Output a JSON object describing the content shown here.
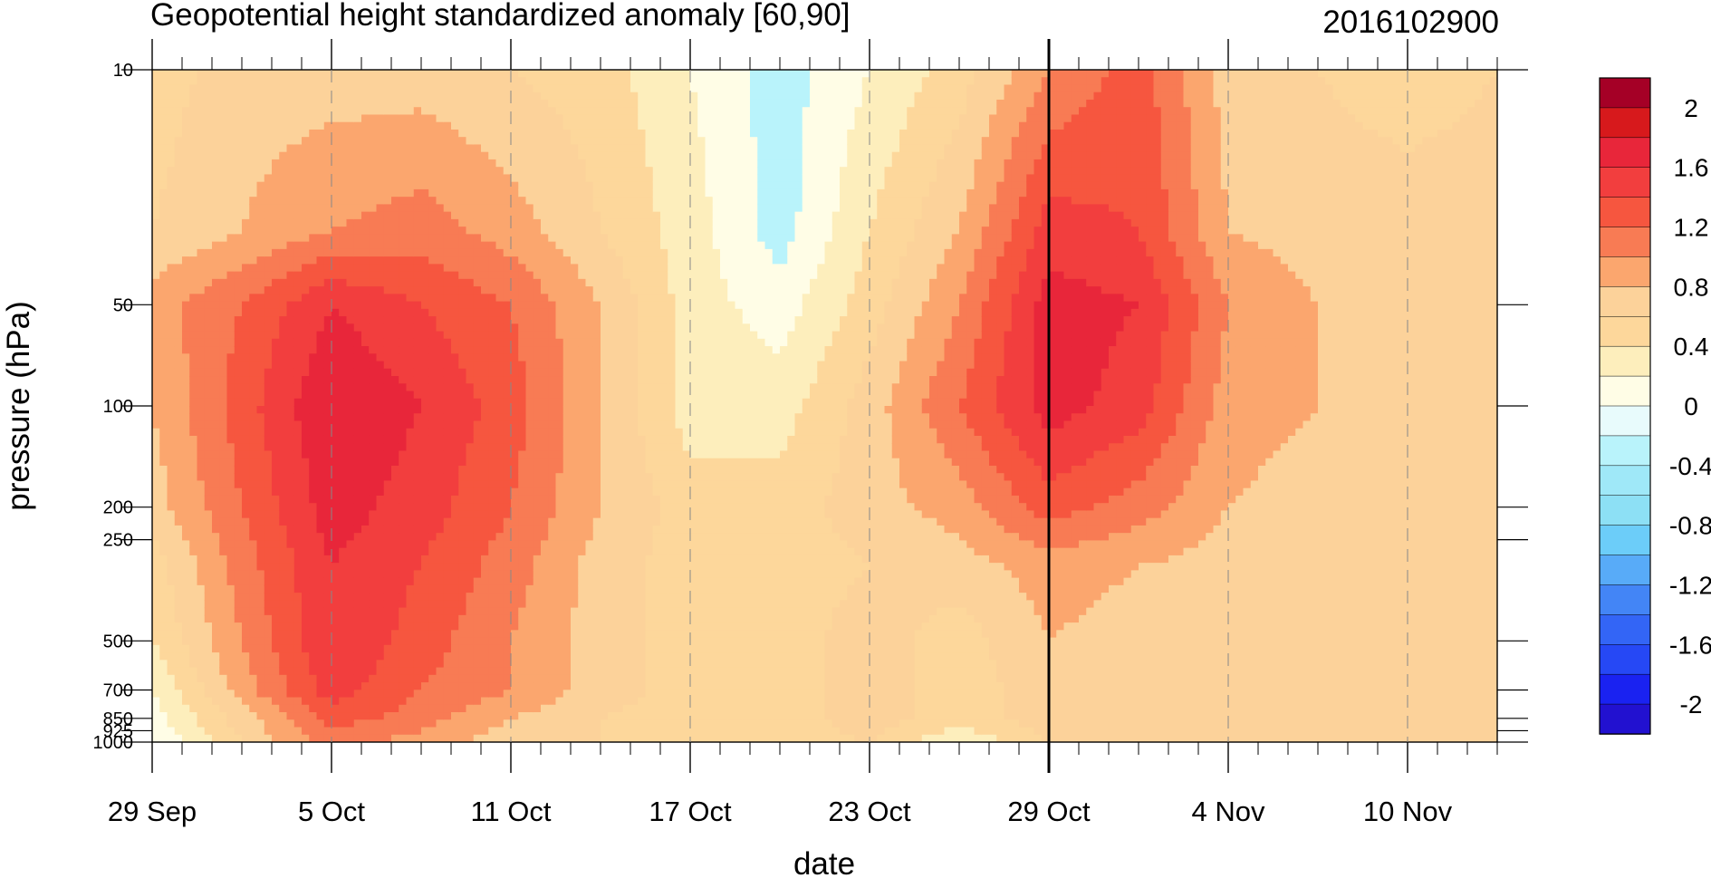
{
  "chart_data": {
    "type": "heatmap",
    "title": "Geopotential height standardized anomaly [60,90]",
    "timestamp": "2016102900",
    "xlabel": "date",
    "ylabel": "pressure (hPa)",
    "x_ticks": [
      "29 Sep",
      "5 Oct",
      "11 Oct",
      "17 Oct",
      "23 Oct",
      "29 Oct",
      "4 Nov",
      "10 Nov"
    ],
    "x_tick_days": [
      0,
      6,
      12,
      18,
      24,
      30,
      36,
      42
    ],
    "x_range_days": [
      0,
      45
    ],
    "current_date_day": 30,
    "y_scale": "log",
    "y_range": [
      10,
      1000
    ],
    "y_ticks": [
      "10",
      "50",
      "100",
      "200",
      "250",
      "500",
      "700",
      "850",
      "925",
      "1000"
    ],
    "y_tick_values": [
      10,
      50,
      100,
      200,
      250,
      500,
      700,
      850,
      925,
      1000
    ],
    "colorbar": {
      "labels": [
        "2",
        "1.6",
        "1.2",
        "0.8",
        "0.4",
        "0",
        "-0.4",
        "-0.8",
        "-1.2",
        "-1.6",
        "-2"
      ],
      "label_values": [
        2,
        1.6,
        1.2,
        0.8,
        0.4,
        0,
        -0.4,
        -0.8,
        -1.2,
        -1.6,
        -2
      ],
      "colors": [
        "#a50026",
        "#d7191c",
        "#e8263a",
        "#f23e3e",
        "#f6563f",
        "#f87b54",
        "#fba66e",
        "#fcd29a",
        "#fdd79b",
        "#fdeebc",
        "#fffde6",
        "#e8fbfc",
        "#b9f3fb",
        "#9fe8f8",
        "#8de0f5",
        "#6ccdf9",
        "#58abf8",
        "#4385f6",
        "#3365f6",
        "#2648f5",
        "#1a22f1",
        "#2211d0"
      ]
    },
    "levels": [
      -0.2,
      0,
      0.2,
      0.4,
      0.6,
      0.8,
      1.0,
      1.2,
      1.4,
      1.6
    ],
    "field": {
      "days": [
        0,
        3,
        6,
        9,
        12,
        15,
        18,
        21,
        24,
        27,
        30,
        33,
        36,
        39,
        42,
        45
      ],
      "p": [
        10,
        30,
        50,
        100,
        200,
        300,
        500,
        700,
        850,
        1000
      ],
      "values": [
        [
          0.3,
          0.5,
          0.5,
          0.5,
          0.4,
          0.3,
          0.0,
          -0.3,
          0.0,
          0.3,
          0.8,
          1.1,
          0.5,
          0.4,
          0.3,
          0.4
        ],
        [
          0.4,
          0.6,
          0.8,
          0.9,
          0.7,
          0.4,
          0.1,
          -0.3,
          0.2,
          0.6,
          1.3,
          1.2,
          0.6,
          0.5,
          0.5,
          0.5
        ],
        [
          0.7,
          1.0,
          1.4,
          1.2,
          1.0,
          0.6,
          0.1,
          -0.1,
          0.3,
          0.8,
          1.5,
          1.4,
          0.8,
          0.6,
          0.5,
          0.6
        ],
        [
          0.6,
          1.1,
          1.6,
          1.4,
          1.1,
          0.6,
          0.1,
          0.1,
          0.5,
          1.0,
          1.5,
          1.3,
          0.7,
          0.6,
          0.5,
          0.5
        ],
        [
          0.5,
          1.0,
          1.5,
          1.3,
          1.0,
          0.6,
          0.3,
          0.3,
          0.5,
          0.7,
          1.1,
          0.9,
          0.6,
          0.5,
          0.5,
          0.5
        ],
        [
          0.3,
          0.9,
          1.4,
          1.2,
          0.9,
          0.5,
          0.3,
          0.3,
          0.4,
          0.5,
          0.7,
          0.6,
          0.5,
          0.5,
          0.5,
          0.5
        ],
        [
          0.2,
          0.8,
          1.4,
          1.1,
          0.8,
          0.5,
          0.3,
          0.3,
          0.5,
          0.3,
          0.6,
          0.5,
          0.5,
          0.5,
          0.5,
          0.5
        ],
        [
          0.0,
          0.7,
          1.3,
          1.0,
          0.8,
          0.5,
          0.3,
          0.3,
          0.5,
          0.3,
          0.5,
          0.5,
          0.6,
          0.5,
          0.5,
          0.5
        ],
        [
          -0.1,
          0.5,
          1.1,
          0.9,
          0.6,
          0.4,
          0.3,
          0.3,
          0.5,
          0.3,
          0.5,
          0.5,
          0.5,
          0.5,
          0.5,
          0.5
        ],
        [
          -0.2,
          0.4,
          0.9,
          0.7,
          0.5,
          0.4,
          0.3,
          0.3,
          0.4,
          0.0,
          0.4,
          0.5,
          0.5,
          0.5,
          0.5,
          0.5
        ]
      ]
    }
  }
}
